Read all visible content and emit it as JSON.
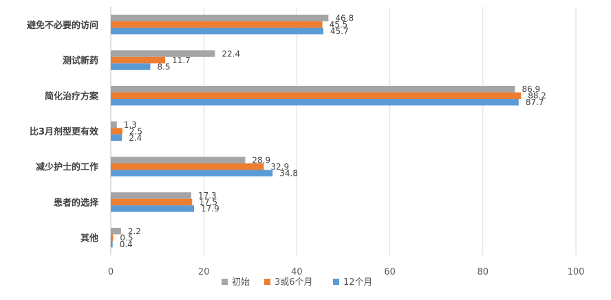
{
  "chart_data": {
    "type": "bar",
    "orientation": "horizontal",
    "categories": [
      "避免不必要的访问",
      "测试新药",
      "简化治疗方案",
      "比3月剂型更有效",
      "减少护士的工作",
      "患者的选择",
      "其他"
    ],
    "series": [
      {
        "name": "初始",
        "color": "#a5a5a5",
        "values": [
          46.8,
          22.4,
          86.9,
          1.3,
          28.9,
          17.3,
          2.2
        ]
      },
      {
        "name": "3或6个月",
        "color": "#ed7d31",
        "values": [
          45.5,
          11.7,
          88.2,
          2.5,
          32.9,
          17.5,
          0.5
        ]
      },
      {
        "name": "12个月",
        "color": "#5b9bd5",
        "values": [
          45.7,
          8.5,
          87.7,
          2.4,
          34.8,
          17.9,
          0.4
        ]
      }
    ],
    "xlim": [
      0,
      100
    ],
    "xticks": [
      0,
      20,
      40,
      60,
      80,
      100
    ],
    "grid": true,
    "legend_position": "bottom",
    "data_labels": true
  }
}
